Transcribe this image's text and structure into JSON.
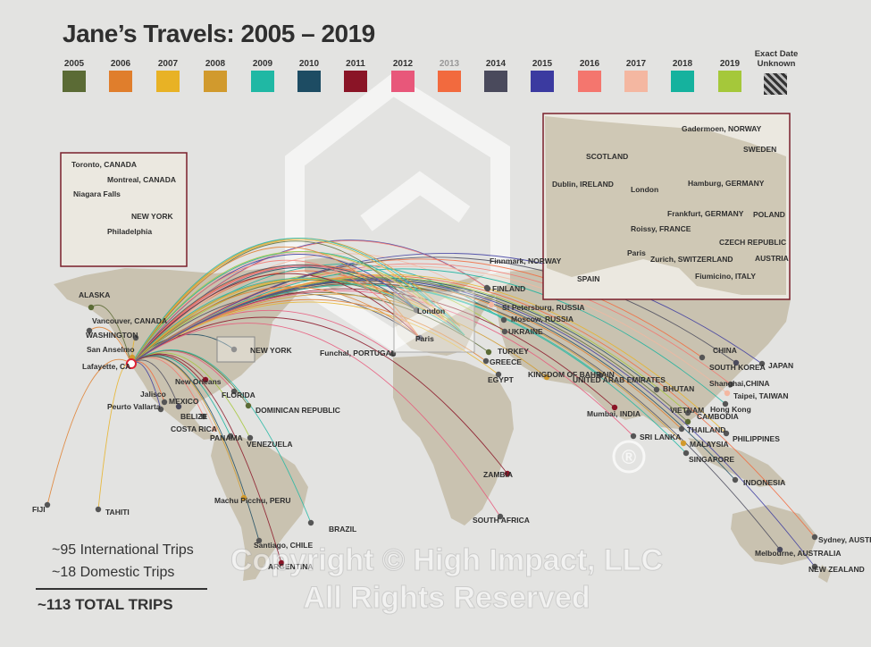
{
  "title": "Jane’s Travels: 2005 – 2019",
  "legend": {
    "items": [
      {
        "year": "2005",
        "color": "#5b6b35"
      },
      {
        "year": "2006",
        "color": "#e07e2c"
      },
      {
        "year": "2007",
        "color": "#e8b225"
      },
      {
        "year": "2008",
        "color": "#d19a2d"
      },
      {
        "year": "2009",
        "color": "#20b8a4"
      },
      {
        "year": "2010",
        "color": "#1d4c63"
      },
      {
        "year": "2011",
        "color": "#8a1426"
      },
      {
        "year": "2012",
        "color": "#e8577a"
      },
      {
        "year": "2013",
        "color": "#f26a3e"
      },
      {
        "year": "2014",
        "color": "#4a4a5c"
      },
      {
        "year": "2015",
        "color": "#3b3aa0"
      },
      {
        "year": "2016",
        "color": "#f4766e"
      },
      {
        "year": "2017",
        "color": "#f4b7a1"
      },
      {
        "year": "2018",
        "color": "#15b29e"
      },
      {
        "year": "2019",
        "color": "#a5c83a"
      }
    ],
    "unknown_label": "Exact Date Unknown"
  },
  "stats": {
    "international": "~95  International Trips",
    "domestic": "~18  Domestic Trips",
    "total": "~113  TOTAL TRIPS"
  },
  "copyright": {
    "line1": "Copyright © High Impact, LLC",
    "line2": "All Rights Reserved",
    "registered": "®"
  },
  "labels": [
    {
      "text": "ALASKA"
    },
    {
      "text": "Vancouver, CANADA"
    },
    {
      "text": "WASHINGTON"
    },
    {
      "text": "San Anselmo"
    },
    {
      "text": "Lafayette, CA"
    },
    {
      "text": "NEW YORK"
    },
    {
      "text": "New Orleans"
    },
    {
      "text": "FLORIDA"
    },
    {
      "text": "Jalisco"
    },
    {
      "text": "MEXICO"
    },
    {
      "text": "Peurto Vallarta"
    },
    {
      "text": "BELIZE"
    },
    {
      "text": "COSTA RICA"
    },
    {
      "text": "PANAMA"
    },
    {
      "text": "VENEZUELA"
    },
    {
      "text": "DOMINICAN REPUBLIC"
    },
    {
      "text": "FIJI"
    },
    {
      "text": "TAHITI"
    },
    {
      "text": "Machu Picchu, PERU"
    },
    {
      "text": "BRAZIL"
    },
    {
      "text": "Santiago, CHILE"
    },
    {
      "text": "ARGENTINA"
    },
    {
      "text": "Funchal, PORTUGAL"
    },
    {
      "text": "London"
    },
    {
      "text": "Paris"
    },
    {
      "text": "Finnmark, NORWAY"
    },
    {
      "text": "FINLAND"
    },
    {
      "text": "St Petersburg, RUSSIA"
    },
    {
      "text": "Moscow, RUSSIA"
    },
    {
      "text": "UKRAINE"
    },
    {
      "text": "TURKEY"
    },
    {
      "text": "GREECE"
    },
    {
      "text": "EGYPT"
    },
    {
      "text": "KINGDOM OF BAHRAIN"
    },
    {
      "text": "UNITED ARAB EMIRATES"
    },
    {
      "text": "BHUTAN"
    },
    {
      "text": "Mumbai, INDIA"
    },
    {
      "text": "SRI LANKA"
    },
    {
      "text": "CHINA"
    },
    {
      "text": "SOUTH KOREA"
    },
    {
      "text": "JAPAN"
    },
    {
      "text": "Shanghai,CHINA"
    },
    {
      "text": "Taipei, TAIWAN"
    },
    {
      "text": "Hong Kong"
    },
    {
      "text": "VIETNAM"
    },
    {
      "text": "CAMBODIA"
    },
    {
      "text": "THAILAND"
    },
    {
      "text": "PHILIPPINES"
    },
    {
      "text": "MALAYSIA"
    },
    {
      "text": "SINGAPORE"
    },
    {
      "text": "INDONESIA"
    },
    {
      "text": "ZAMBIA"
    },
    {
      "text": "SOUTH AFRICA"
    },
    {
      "text": "Sydney, AUSTRALIA"
    },
    {
      "text": "Melbourne, AUSTRALIA"
    },
    {
      "text": "NEW ZEALAND"
    }
  ],
  "inset_us": [
    {
      "text": "Toronto, CANADA"
    },
    {
      "text": "Montreal, CANADA"
    },
    {
      "text": "Niagara Falls"
    },
    {
      "text": "NEW YORK"
    },
    {
      "text": "Philadelphia"
    }
  ],
  "inset_eu": [
    {
      "text": "SCOTLAND"
    },
    {
      "text": "Gadermoen, NORWAY"
    },
    {
      "text": "SWEDEN"
    },
    {
      "text": "Dublin, IRELAND"
    },
    {
      "text": "London"
    },
    {
      "text": "Hamburg, GERMANY"
    },
    {
      "text": "Frankfurt, GERMANY"
    },
    {
      "text": "POLAND"
    },
    {
      "text": "Roissy, FRANCE"
    },
    {
      "text": "CZECH REPUBLIC"
    },
    {
      "text": "Paris"
    },
    {
      "text": "Zurich, SWITZERLAND"
    },
    {
      "text": "AUSTRIA"
    },
    {
      "text": "SPAIN"
    },
    {
      "text": "Fiumicino, ITALY"
    }
  ]
}
